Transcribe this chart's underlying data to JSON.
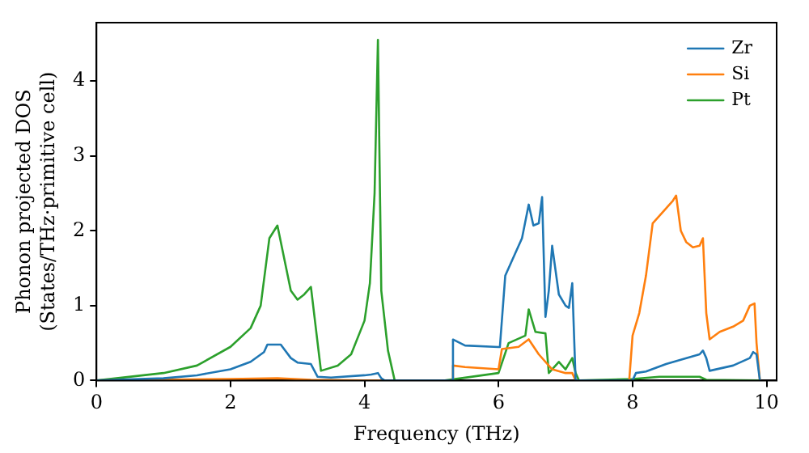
{
  "chart_data": {
    "type": "line",
    "xlabel": "Frequency (THz)",
    "ylabel": "Phonon projected DOS\n(States/THz·primitive cell)",
    "xlim": [
      0,
      10.15
    ],
    "ylim": [
      0,
      4.78
    ],
    "xticks": [
      0,
      2,
      4,
      6,
      8,
      10
    ],
    "yticks": [
      0,
      1,
      2,
      3,
      4
    ],
    "grid": false,
    "legend": "top right",
    "marker": "none",
    "line_style": "solid",
    "series": [
      {
        "name": "Zr",
        "color": "#1f77b4",
        "x": [
          0,
          1,
          1.5,
          2,
          2.3,
          2.5,
          2.55,
          2.75,
          2.9,
          3.0,
          3.2,
          3.3,
          3.5,
          4.0,
          4.1,
          4.2,
          4.25,
          4.3,
          5.3,
          5.32,
          5.5,
          6.0,
          6.02,
          6.1,
          6.2,
          6.35,
          6.45,
          6.52,
          6.6,
          6.65,
          6.7,
          6.75,
          6.8,
          6.9,
          7.0,
          7.05,
          7.1,
          7.15,
          8.0,
          8.05,
          8.2,
          8.5,
          9.0,
          9.05,
          9.1,
          9.15,
          9.5,
          9.75,
          9.8,
          9.85,
          9.9
        ],
        "values": [
          0,
          0.03,
          0.07,
          0.15,
          0.25,
          0.38,
          0.48,
          0.48,
          0.3,
          0.24,
          0.22,
          0.05,
          0.04,
          0.07,
          0.08,
          0.1,
          0.03,
          0,
          0,
          0.548,
          0.468,
          0.448,
          0.45,
          1.4,
          1.6,
          1.9,
          2.35,
          2.07,
          2.1,
          2.45,
          0.85,
          1.2,
          1.8,
          1.15,
          1.0,
          0.97,
          1.3,
          0,
          0,
          0.1,
          0.12,
          0.22,
          0.35,
          0.4,
          0.3,
          0.13,
          0.2,
          0.3,
          0.38,
          0.35,
          0
        ]
      },
      {
        "name": "Si",
        "color": "#ff7f0e",
        "x": [
          0,
          2,
          2.7,
          3.2,
          4.0,
          5.3,
          5.32,
          5.5,
          6.0,
          6.05,
          6.3,
          6.45,
          6.6,
          6.8,
          7.0,
          7.1,
          7.15,
          7.95,
          8.0,
          8.1,
          8.2,
          8.3,
          8.5,
          8.6,
          8.65,
          8.72,
          8.8,
          8.9,
          9.0,
          9.05,
          9.1,
          9.15,
          9.3,
          9.5,
          9.65,
          9.75,
          9.82,
          9.85,
          9.9
        ],
        "values": [
          0,
          0.02,
          0.03,
          0.01,
          0,
          0,
          0.2,
          0.18,
          0.15,
          0.42,
          0.45,
          0.55,
          0.35,
          0.15,
          0.1,
          0.1,
          0,
          0,
          0.6,
          0.9,
          1.4,
          2.1,
          2.3,
          2.4,
          2.47,
          2.0,
          1.85,
          1.78,
          1.8,
          1.9,
          0.9,
          0.55,
          0.65,
          0.72,
          0.8,
          1.0,
          1.03,
          0.5,
          0
        ]
      },
      {
        "name": "Pt",
        "color": "#2ca02c",
        "x": [
          0,
          1,
          1.5,
          2,
          2.3,
          2.45,
          2.58,
          2.7,
          2.9,
          3.0,
          3.1,
          3.2,
          3.3,
          3.35,
          3.6,
          3.8,
          4.0,
          4.08,
          4.15,
          4.2,
          4.25,
          4.35,
          4.45,
          5.2,
          6.0,
          6.15,
          6.4,
          6.45,
          6.55,
          6.7,
          6.75,
          6.9,
          7.0,
          7.1,
          7.15,
          7.2,
          8.0,
          8.4,
          9.0,
          9.1,
          9.9
        ],
        "values": [
          0,
          0.1,
          0.2,
          0.45,
          0.7,
          1.0,
          1.9,
          2.07,
          1.2,
          1.08,
          1.15,
          1.25,
          0.5,
          0.13,
          0.2,
          0.35,
          0.8,
          1.3,
          2.5,
          4.55,
          1.2,
          0.4,
          0,
          0,
          0.1,
          0.5,
          0.6,
          0.95,
          0.65,
          0.63,
          0.1,
          0.25,
          0.15,
          0.3,
          0.1,
          0,
          0.02,
          0.05,
          0.05,
          0.01,
          0
        ]
      }
    ]
  }
}
